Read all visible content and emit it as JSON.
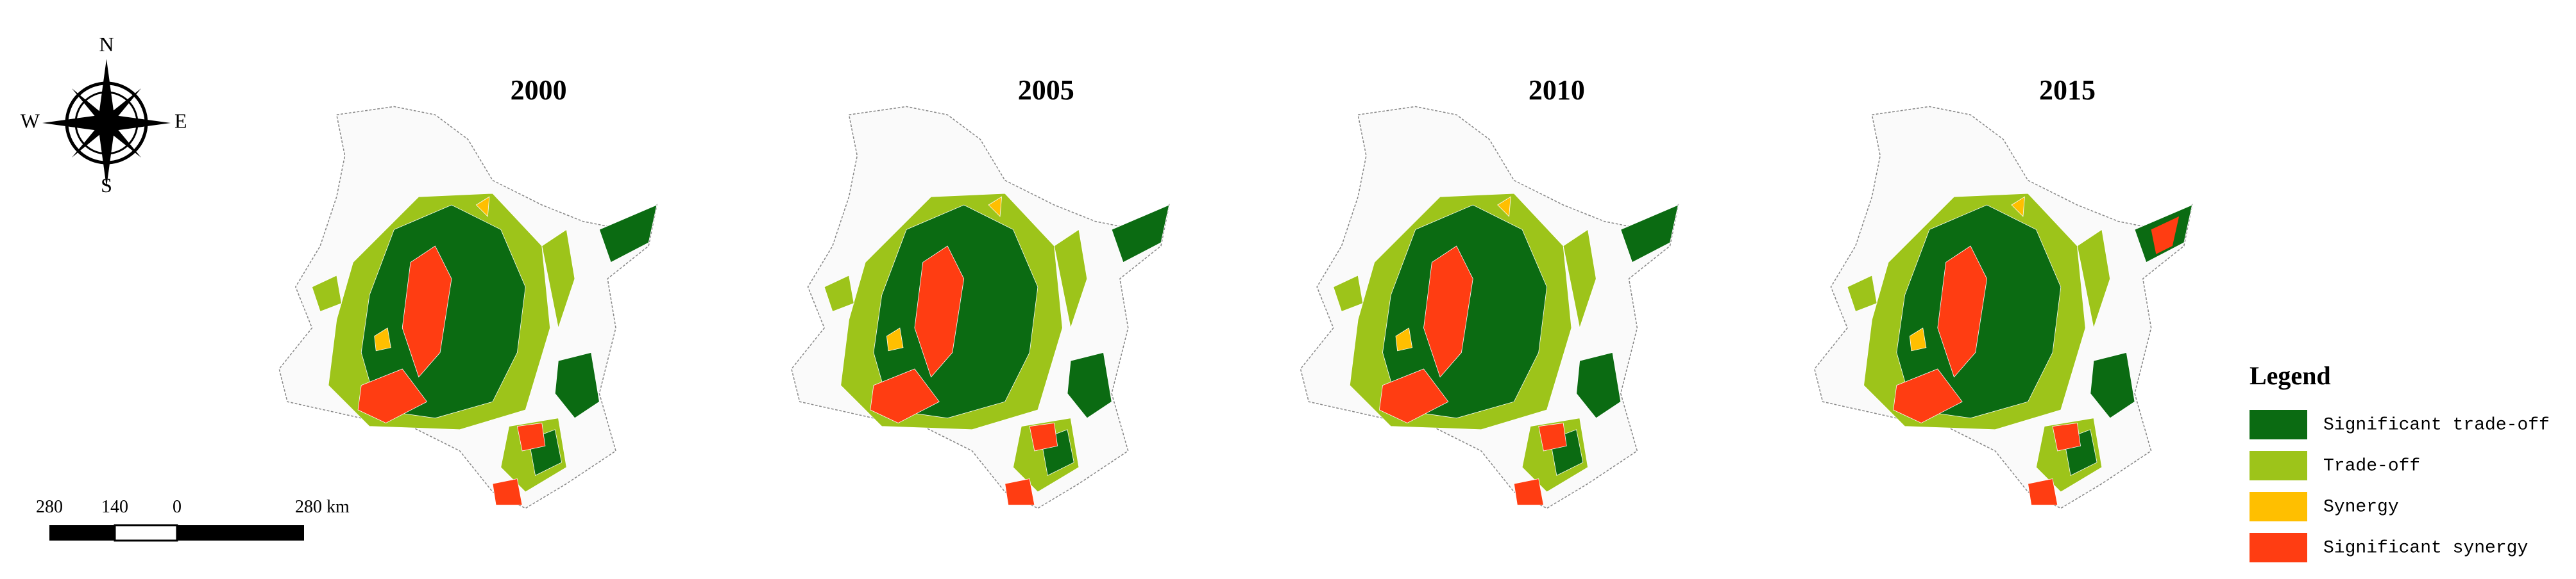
{
  "compass": {
    "north": "N",
    "south": "S",
    "west": "W",
    "east": "E"
  },
  "panels": [
    {
      "title": "2000"
    },
    {
      "title": "2005"
    },
    {
      "title": "2010"
    },
    {
      "title": "2015"
    }
  ],
  "scale_bar": {
    "labels": [
      "280",
      "140",
      "0",
      "280 km"
    ]
  },
  "legend": {
    "title": "Legend",
    "items": [
      {
        "label": "Significant trade-off",
        "color": "#0b6b12"
      },
      {
        "label": "Trade-off",
        "color": "#9dc41a"
      },
      {
        "label": "Synergy",
        "color": "#ffbf00"
      },
      {
        "label": "Significant synergy",
        "color": "#ff3d12"
      }
    ]
  }
}
